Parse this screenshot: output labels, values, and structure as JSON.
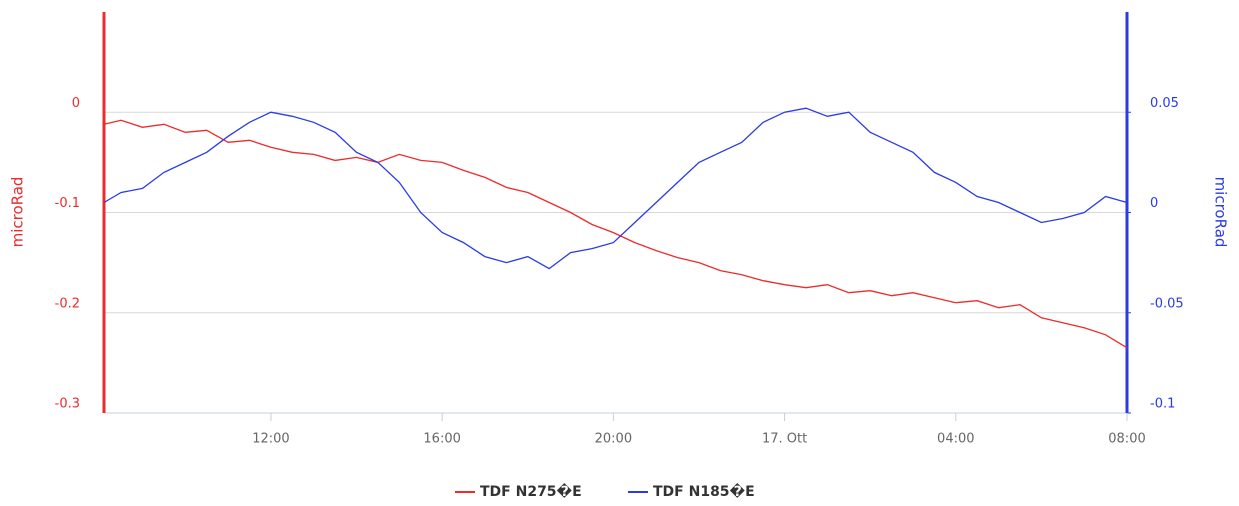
{
  "chart_data": {
    "type": "line",
    "y_label": "microRad",
    "y2_label": "microRad",
    "x": [
      8.1,
      8.5,
      9,
      9.5,
      10,
      10.5,
      11,
      11.5,
      12,
      12.5,
      13,
      13.5,
      14,
      14.5,
      15,
      15.5,
      16,
      16.5,
      17,
      17.5,
      18,
      18.5,
      19,
      19.5,
      20,
      20.5,
      21,
      21.5,
      22,
      22.5,
      23,
      23.5,
      24,
      24.5,
      25,
      25.5,
      26,
      26.5,
      27,
      27.5,
      28,
      28.5,
      29,
      29.5,
      30,
      30.5,
      31,
      31.5,
      32
    ],
    "series": [
      {
        "name": "TDF N275�E",
        "color": "#ec2b2b",
        "axis": "y",
        "values": [
          -0.012,
          -0.008,
          -0.015,
          -0.012,
          -0.02,
          -0.018,
          -0.03,
          -0.028,
          -0.035,
          -0.04,
          -0.042,
          -0.048,
          -0.045,
          -0.05,
          -0.042,
          -0.048,
          -0.05,
          -0.058,
          -0.065,
          -0.075,
          -0.08,
          -0.09,
          -0.1,
          -0.112,
          -0.12,
          -0.13,
          -0.138,
          -0.145,
          -0.15,
          -0.158,
          -0.162,
          -0.168,
          -0.172,
          -0.175,
          -0.172,
          -0.18,
          -0.178,
          -0.183,
          -0.18,
          -0.185,
          -0.19,
          -0.188,
          -0.195,
          -0.192,
          -0.205,
          -0.21,
          -0.215,
          -0.222,
          -0.235
        ]
      },
      {
        "name": "TDF N185�E",
        "color": "#2a3be6",
        "axis": "y2",
        "values": [
          0.005,
          0.01,
          0.012,
          0.02,
          0.025,
          0.03,
          0.038,
          0.045,
          0.05,
          0.048,
          0.045,
          0.04,
          0.03,
          0.025,
          0.015,
          0.0,
          -0.01,
          -0.015,
          -0.022,
          -0.025,
          -0.022,
          -0.028,
          -0.02,
          -0.018,
          -0.015,
          -0.005,
          0.005,
          0.015,
          0.025,
          0.03,
          0.035,
          0.045,
          0.05,
          0.052,
          0.048,
          0.05,
          0.04,
          0.035,
          0.03,
          0.02,
          0.015,
          0.008,
          0.005,
          0.0,
          -0.005,
          -0.003,
          0.0,
          0.008,
          0.005
        ]
      }
    ],
    "xlim": [
      8.1,
      32
    ],
    "xticks": [
      {
        "value": 12,
        "label": "12:00"
      },
      {
        "value": 16,
        "label": "16:00"
      },
      {
        "value": 20,
        "label": "20:00"
      },
      {
        "value": 24,
        "label": "17. Ott"
      },
      {
        "value": 28,
        "label": "04:00"
      },
      {
        "value": 32,
        "label": "08:00"
      }
    ],
    "ylim": [
      -0.3,
      0.1
    ],
    "yticks": [
      -0.3,
      -0.2,
      -0.1,
      0
    ],
    "y2lim": [
      -0.1,
      0.1
    ],
    "y2ticks": [
      -0.1,
      -0.05,
      0,
      0.05
    ],
    "grid": true,
    "legend": "bottom"
  }
}
